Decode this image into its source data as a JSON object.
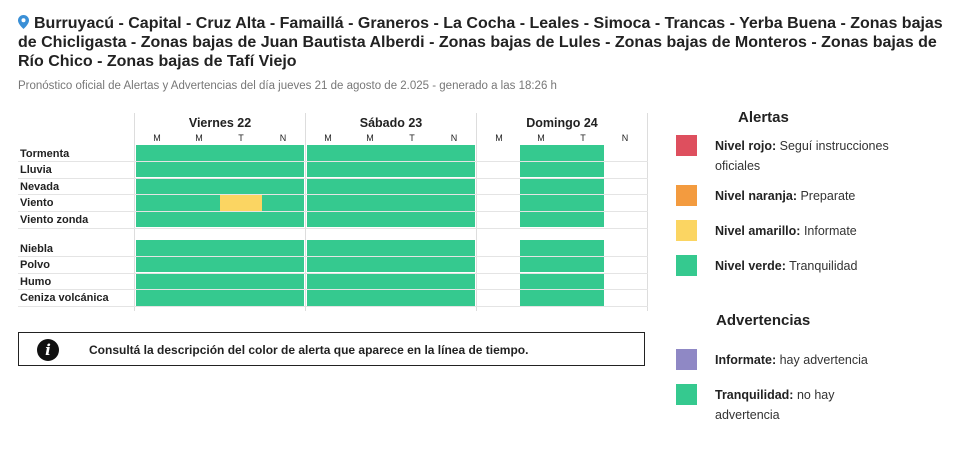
{
  "header": {
    "title": "Burruyacú - Capital - Cruz Alta - Famaillá - Graneros - La Cocha - Leales - Simoca - Trancas - Yerba Buena - Zonas bajas de Chicligasta - Zonas bajas de Juan Bautista Alberdi - Zonas bajas de Lules - Zonas bajas de Monteros - Zonas bajas de Río Chico - Zonas bajas de Tafí Viejo",
    "pin_icon": "map-pin-icon",
    "subtitle": "Pronóstico oficial de Alertas y Advertencias del día jueves 21 de agosto de 2.025 - generado a las 18:26 h"
  },
  "colors": {
    "red": "#de4f5e",
    "orange": "#f39b3f",
    "yellow": "#fbd562",
    "green": "#35c98f",
    "purple": "#8f88c5"
  },
  "timeline": {
    "days": [
      {
        "label": "Viernes 22",
        "slots": [
          "M",
          "M",
          "T",
          "N"
        ]
      },
      {
        "label": "Sábado 23",
        "slots": [
          "M",
          "M",
          "T",
          "N"
        ]
      },
      {
        "label": "Domingo 24",
        "slots": [
          "M",
          "M",
          "T",
          "N"
        ]
      }
    ],
    "groups": [
      {
        "rows": [
          {
            "label": "Tormenta",
            "cells": [
              "green",
              "green",
              "green",
              "green",
              "green",
              "green",
              "green",
              "green",
              "none",
              "green",
              "green",
              "none"
            ]
          },
          {
            "label": "Lluvia",
            "cells": [
              "green",
              "green",
              "green",
              "green",
              "green",
              "green",
              "green",
              "green",
              "none",
              "green",
              "green",
              "none"
            ]
          },
          {
            "label": "Nevada",
            "cells": [
              "green",
              "green",
              "green",
              "green",
              "green",
              "green",
              "green",
              "green",
              "none",
              "green",
              "green",
              "none"
            ]
          },
          {
            "label": "Viento",
            "cells": [
              "green",
              "green",
              "yellow",
              "green",
              "green",
              "green",
              "green",
              "green",
              "none",
              "green",
              "green",
              "none"
            ]
          },
          {
            "label": "Viento zonda",
            "cells": [
              "green",
              "green",
              "green",
              "green",
              "green",
              "green",
              "green",
              "green",
              "none",
              "green",
              "green",
              "none"
            ]
          }
        ]
      },
      {
        "rows": [
          {
            "label": "Niebla",
            "cells": [
              "green",
              "green",
              "green",
              "green",
              "green",
              "green",
              "green",
              "green",
              "none",
              "green",
              "green",
              "none"
            ]
          },
          {
            "label": "Polvo",
            "cells": [
              "green",
              "green",
              "green",
              "green",
              "green",
              "green",
              "green",
              "green",
              "none",
              "green",
              "green",
              "none"
            ]
          },
          {
            "label": "Humo",
            "cells": [
              "green",
              "green",
              "green",
              "green",
              "green",
              "green",
              "green",
              "green",
              "none",
              "green",
              "green",
              "none"
            ]
          },
          {
            "label": "Ceniza volcánica",
            "cells": [
              "green",
              "green",
              "green",
              "green",
              "green",
              "green",
              "green",
              "green",
              "none",
              "green",
              "green",
              "none"
            ]
          }
        ]
      }
    ]
  },
  "info": {
    "icon": "info-icon",
    "text": "Consultá la descripción del color de alerta que aparece en la línea de tiempo."
  },
  "legend": {
    "alertas_title": "Alertas",
    "alertas": [
      {
        "color": "red",
        "level": "Nivel rojo:",
        "desc": "Seguí instrucciones oficiales"
      },
      {
        "color": "orange",
        "level": "Nivel naranja:",
        "desc": "Preparate"
      },
      {
        "color": "yellow",
        "level": "Nivel amarillo:",
        "desc": "Informate"
      },
      {
        "color": "green",
        "level": "Nivel verde:",
        "desc": "Tranquilidad"
      }
    ],
    "advertencias_title": "Advertencias",
    "advertencias": [
      {
        "color": "purple",
        "level": "Informate:",
        "desc": "hay advertencia"
      },
      {
        "color": "green",
        "level": "Tranquilidad:",
        "desc": "no hay advertencia"
      }
    ]
  }
}
